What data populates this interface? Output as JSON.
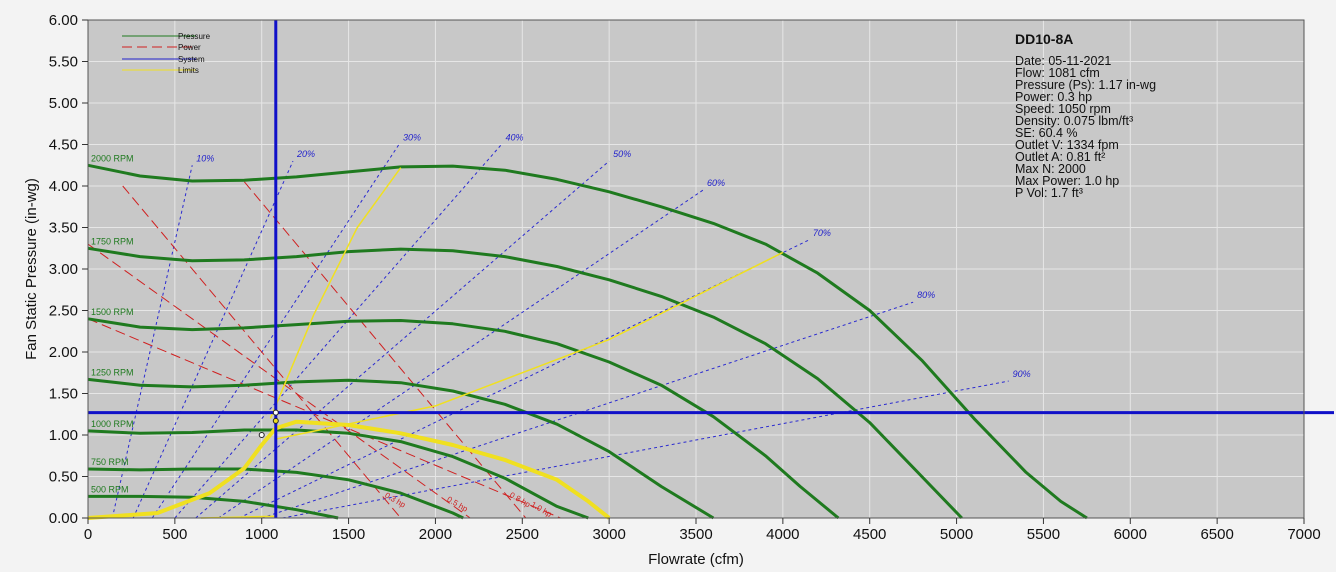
{
  "chart_data": {
    "type": "line",
    "xlabel": "Flowrate (cfm)",
    "ylabel": "Fan Static Pressure (in-wg)",
    "xlim": [
      0,
      7000
    ],
    "ylim": [
      0,
      6
    ],
    "x_ticks": [
      "0",
      "500",
      "1000",
      "1500",
      "2000",
      "2500",
      "3000",
      "3500",
      "4000",
      "4500",
      "5000",
      "5500",
      "6000",
      "6500",
      "7000"
    ],
    "y_ticks": [
      "0.00",
      "0.50",
      "1.00",
      "1.50",
      "2.00",
      "2.50",
      "3.00",
      "3.50",
      "4.00",
      "4.50",
      "5.00",
      "5.50",
      "6.00"
    ],
    "grid": true,
    "legend_position": "top-left",
    "legend": [
      {
        "name": "Pressure",
        "color": "#1f7a1f",
        "style": "solid"
      },
      {
        "name": "Power",
        "color": "#d02020",
        "style": "dashed"
      },
      {
        "name": "System",
        "color": "#2222cc",
        "style": "solid"
      },
      {
        "name": "Limits",
        "color": "#f0e020",
        "style": "solid"
      }
    ],
    "pressure_curves": [
      {
        "name": "2000 RPM",
        "x": [
          0,
          300,
          600,
          900,
          1200,
          1500,
          1800,
          2100,
          2400,
          2700,
          3000,
          3300,
          3600,
          3900,
          4200,
          4500,
          4800,
          5100,
          5400,
          5600,
          5750
        ],
        "y": [
          4.25,
          4.12,
          4.06,
          4.07,
          4.11,
          4.17,
          4.23,
          4.24,
          4.19,
          4.08,
          3.93,
          3.75,
          3.55,
          3.3,
          2.95,
          2.5,
          1.9,
          1.2,
          0.55,
          0.2,
          0.0
        ]
      },
      {
        "name": "1750 RPM",
        "x": [
          0,
          300,
          600,
          900,
          1200,
          1500,
          1800,
          2100,
          2400,
          2700,
          3000,
          3300,
          3600,
          3900,
          4200,
          4500,
          4800,
          5030
        ],
        "y": [
          3.25,
          3.15,
          3.1,
          3.11,
          3.15,
          3.21,
          3.24,
          3.22,
          3.15,
          3.03,
          2.87,
          2.67,
          2.42,
          2.1,
          1.68,
          1.15,
          0.5,
          0.0
        ]
      },
      {
        "name": "1500 RPM",
        "x": [
          0,
          300,
          600,
          900,
          1200,
          1500,
          1800,
          2100,
          2400,
          2700,
          3000,
          3300,
          3600,
          3900,
          4100,
          4320
        ],
        "y": [
          2.4,
          2.3,
          2.27,
          2.29,
          2.33,
          2.37,
          2.38,
          2.34,
          2.25,
          2.1,
          1.88,
          1.6,
          1.22,
          0.75,
          0.38,
          0.0
        ]
      },
      {
        "name": "1250 RPM",
        "x": [
          0,
          300,
          600,
          900,
          1200,
          1500,
          1800,
          2100,
          2400,
          2700,
          3000,
          3300,
          3600
        ],
        "y": [
          1.67,
          1.6,
          1.58,
          1.6,
          1.64,
          1.66,
          1.63,
          1.53,
          1.37,
          1.13,
          0.8,
          0.38,
          0.0
        ]
      },
      {
        "name": "1000 RPM",
        "x": [
          0,
          300,
          600,
          900,
          1200,
          1500,
          1800,
          2100,
          2400,
          2700,
          2880
        ],
        "y": [
          1.05,
          1.02,
          1.03,
          1.06,
          1.06,
          1.02,
          0.92,
          0.74,
          0.48,
          0.14,
          0.0
        ]
      },
      {
        "name": "750 RPM",
        "x": [
          0,
          300,
          600,
          900,
          1200,
          1500,
          1800,
          2100,
          2160
        ],
        "y": [
          0.59,
          0.58,
          0.59,
          0.59,
          0.55,
          0.46,
          0.3,
          0.06,
          0.0
        ]
      },
      {
        "name": "500 RPM",
        "x": [
          0,
          300,
          600,
          900,
          1200,
          1440
        ],
        "y": [
          0.26,
          0.26,
          0.25,
          0.2,
          0.1,
          0.0
        ]
      }
    ],
    "efficiency_lines": [
      {
        "name": "10%",
        "x": [
          140,
          600
        ],
        "y": [
          0.0,
          4.25
        ]
      },
      {
        "name": "20%",
        "x": [
          260,
          1180
        ],
        "y": [
          0.0,
          4.3
        ]
      },
      {
        "name": "30%",
        "x": [
          370,
          1790
        ],
        "y": [
          0.0,
          4.5
        ]
      },
      {
        "name": "40%",
        "x": [
          500,
          2380
        ],
        "y": [
          0.0,
          4.5
        ]
      },
      {
        "name": "50%",
        "x": [
          620,
          3000
        ],
        "y": [
          0.0,
          4.3
        ]
      },
      {
        "name": "60%",
        "x": [
          750,
          3540
        ],
        "y": [
          0.0,
          3.95
        ]
      },
      {
        "name": "70%",
        "x": [
          870,
          4150
        ],
        "y": [
          0.0,
          3.35
        ]
      },
      {
        "name": "80%",
        "x": [
          1000,
          4750
        ],
        "y": [
          0.0,
          2.6
        ]
      },
      {
        "name": "90%",
        "x": [
          1120,
          5300
        ],
        "y": [
          0.0,
          1.65
        ]
      }
    ],
    "power_lines": [
      {
        "name": "0.3 hp",
        "label": "0.3 hp",
        "x": [
          200,
          1800
        ],
        "y": [
          4.0,
          0.0
        ]
      },
      {
        "name": "0.5 hp",
        "label": "0.5 hp",
        "x": [
          0,
          2200
        ],
        "y": [
          3.3,
          0.0
        ]
      },
      {
        "name": "0.8 hp",
        "label": "0.8 hp",
        "x": [
          900,
          2520
        ],
        "y": [
          4.05,
          0.0
        ]
      },
      {
        "name": "1.0 hp",
        "label": "1.0 hp",
        "x": [
          0,
          2720
        ],
        "y": [
          2.4,
          0.0
        ]
      }
    ],
    "power_labels": [
      "0.3 hp",
      "0.5 hp",
      "0.8 hp",
      "1.0 hp"
    ],
    "limit_curves": [
      {
        "x": [
          0,
          400,
          700,
          900,
          1000,
          1080,
          1200,
          1500,
          1800,
          2100,
          2400,
          2700,
          2880,
          3000
        ],
        "y": [
          0.0,
          0.06,
          0.3,
          0.6,
          0.88,
          1.08,
          1.16,
          1.12,
          1.02,
          0.88,
          0.7,
          0.46,
          0.2,
          0.0
        ]
      },
      {
        "x": [
          1050,
          1300,
          1550,
          1800
        ],
        "y": [
          1.2,
          2.45,
          3.5,
          4.22
        ]
      },
      {
        "x": [
          1080,
          2000,
          3000,
          4000
        ],
        "y": [
          0.95,
          1.35,
          2.15,
          3.2
        ]
      },
      {
        "x": [
          650,
          1080
        ],
        "y": [
          0.0,
          0.02
        ]
      }
    ],
    "operating_point": {
      "x": 1081,
      "y": 1.17
    },
    "system_cursor": {
      "x": 1081,
      "y": 1.27
    },
    "marker_points": [
      {
        "x": 1000,
        "y": 1.0
      },
      {
        "x": 1081,
        "y": 1.27
      }
    ]
  },
  "info": {
    "title": "DD10-8A",
    "lines": [
      "Date: 05-11-2021",
      "Flow:  1081 cfm",
      "Pressure (Ps):  1.17 in-wg",
      "Power:  0.3 hp",
      "Speed:  1050 rpm",
      "Density: 0.075 lbm/ft³",
      "SE:  60.4 %",
      "Outlet V:  1334 fpm",
      "Outlet A:  0.81 ft²",
      "Max N:  2000",
      "Max Power:   1.0 hp",
      "P Vol:   1.7 ft³"
    ]
  }
}
